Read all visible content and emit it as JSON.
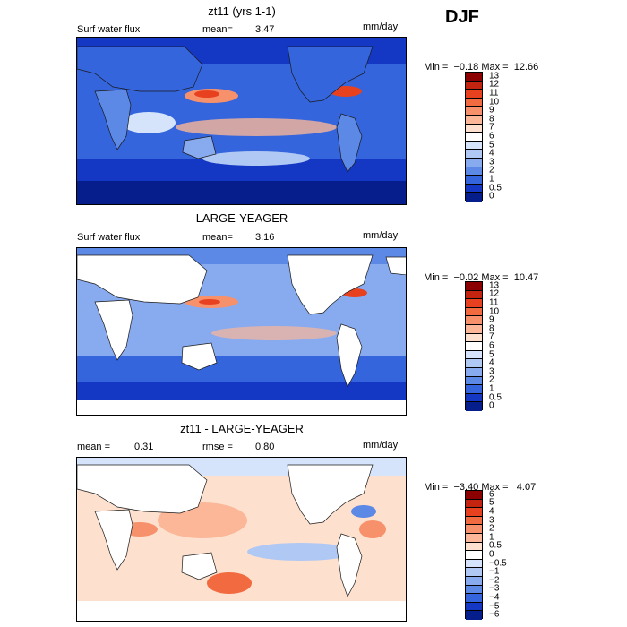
{
  "season": "DJF",
  "panels": [
    {
      "title": "zt11 (yrs 1-1)",
      "left_label": "Surf water flux",
      "stat_label": "mean=",
      "stat_value": "3.47",
      "units": "mm/day",
      "min_text": "Min =  −0.18",
      "max_text": "Max =  12.66",
      "colorbar": [
        "13",
        "12",
        "11",
        "10",
        "9",
        "8",
        "7",
        "6",
        "5",
        "4",
        "3",
        "2",
        "1",
        "0.5",
        "0"
      ]
    },
    {
      "title": "LARGE-YEAGER",
      "left_label": "Surf water flux",
      "stat_label": "mean=",
      "stat_value": "3.16",
      "units": "mm/day",
      "min_text": "Min =  −0.02",
      "max_text": "Max =  10.47",
      "colorbar": [
        "13",
        "12",
        "11",
        "10",
        "9",
        "8",
        "7",
        "6",
        "5",
        "4",
        "3",
        "2",
        "1",
        "0.5",
        "0"
      ]
    },
    {
      "title": "zt11 - LARGE-YEAGER",
      "left_label": "mean =",
      "left_value": "0.31",
      "stat_label": "rmse =",
      "stat_value": "0.80",
      "units": "mm/day",
      "min_text": "Min =  −3.40",
      "max_text": "Max =   4.07",
      "colorbar": [
        "6",
        "5",
        "4",
        "3",
        "2",
        "1",
        "0.5",
        "0",
        "−0.5",
        "−1",
        "−2",
        "−3",
        "−4",
        "−5",
        "−6"
      ]
    }
  ],
  "colors": {
    "abs_scale": [
      "#8b0000",
      "#c3240f",
      "#e8411f",
      "#f26a3f",
      "#f7916b",
      "#fbb798",
      "#fde0cd",
      "#ffffff",
      "#d6e4fb",
      "#b0c8f4",
      "#88aaee",
      "#5c88e6",
      "#3465dd",
      "#1438c4",
      "#061d8c"
    ],
    "diff_scale": [
      "#8b0000",
      "#c3240f",
      "#e8411f",
      "#f26a3f",
      "#f7916b",
      "#fbb798",
      "#fde0cd",
      "#ffffff",
      "#d6e4fb",
      "#b0c8f4",
      "#88aaee",
      "#5c88e6",
      "#3465dd",
      "#1438c4",
      "#061d8c"
    ],
    "land": "#ffffff",
    "coast": "#1a1a1a"
  }
}
